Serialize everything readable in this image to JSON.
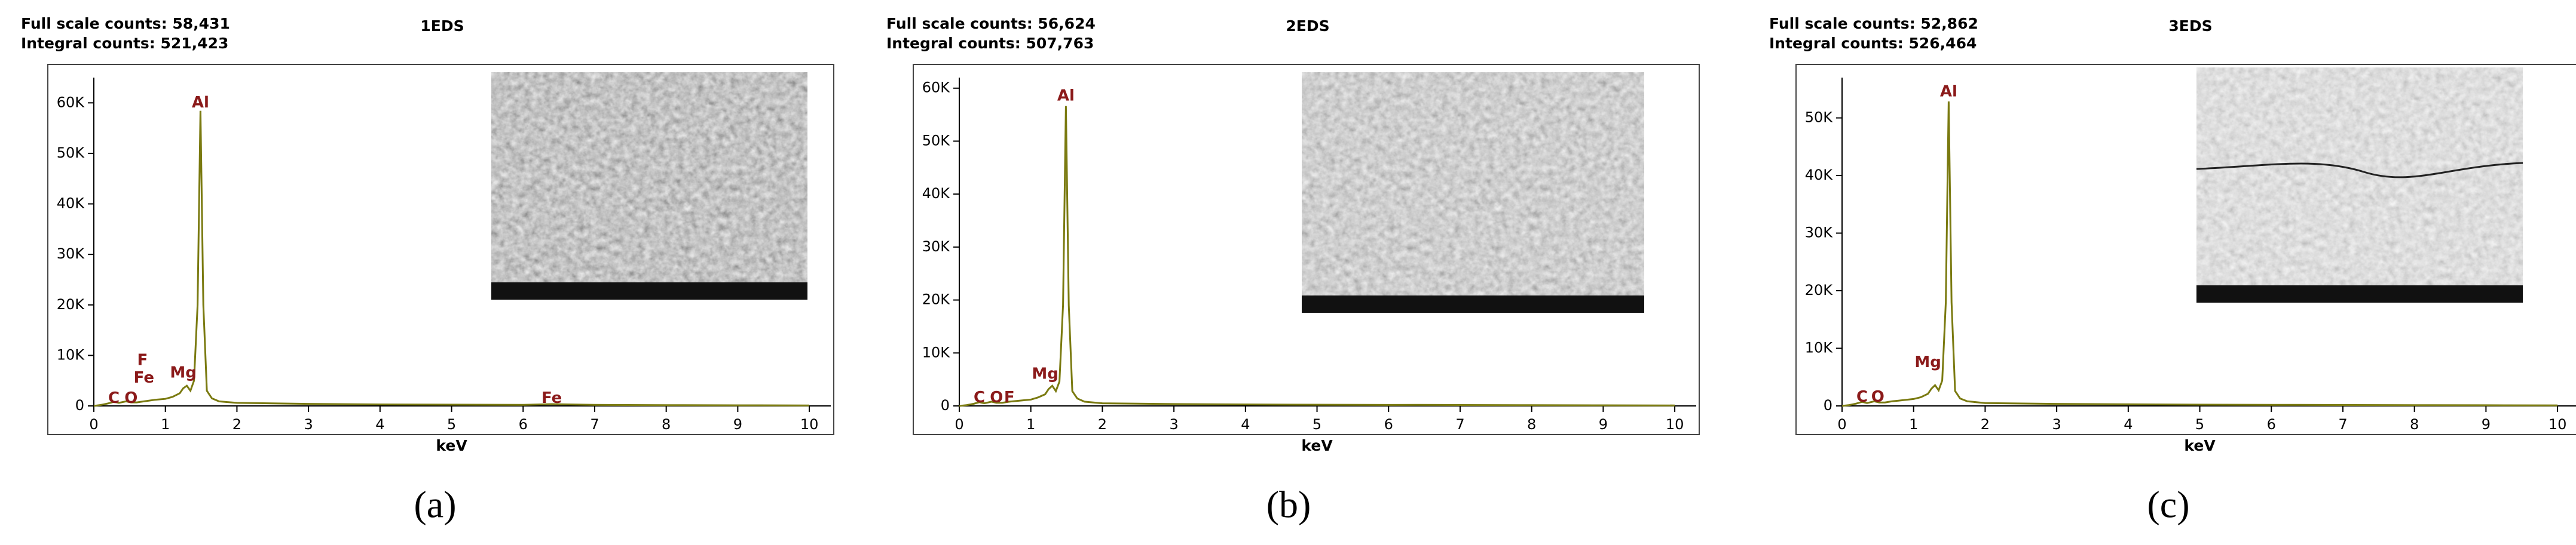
{
  "chart_data": [
    {
      "type": "line",
      "header": [
        "Full scale counts: 58,431",
        "Integral counts: 521,423"
      ],
      "title": "1EDS",
      "xlabel": "keV",
      "caption": "(a)",
      "x": [
        0,
        0.1,
        0.2,
        0.28,
        0.35,
        0.45,
        0.52,
        0.6,
        0.7,
        0.85,
        1.0,
        1.1,
        1.2,
        1.25,
        1.3,
        1.35,
        1.4,
        1.45,
        1.49,
        1.53,
        1.58,
        1.65,
        1.75,
        2.0,
        3,
        4,
        5,
        6,
        6.4,
        7,
        8,
        9,
        10
      ],
      "series": [
        {
          "color": "#7a7a10",
          "values": [
            0,
            200,
            500,
            800,
            600,
            900,
            700,
            700,
            900,
            1200,
            1400,
            1800,
            2500,
            3500,
            4000,
            3000,
            5000,
            20000,
            58431,
            20000,
            3000,
            1500,
            900,
            600,
            400,
            300,
            250,
            200,
            350,
            200,
            150,
            120,
            100
          ]
        }
      ],
      "annotations": [
        {
          "label": "C",
          "x": 0.28,
          "y": 1500
        },
        {
          "label": "O",
          "x": 0.52,
          "y": 1500
        },
        {
          "label": "Fe",
          "x": 0.7,
          "y": 5500
        },
        {
          "label": "F",
          "x": 0.68,
          "y": 9000
        },
        {
          "label": "Mg",
          "x": 1.25,
          "y": 6500
        },
        {
          "label": "Al",
          "x": 1.49,
          "y": 60000
        },
        {
          "label": "Fe",
          "x": 6.4,
          "y": 1500
        }
      ],
      "xlim": [
        0,
        10.3
      ],
      "xticks": [
        0,
        1,
        2,
        3,
        4,
        5,
        6,
        7,
        8,
        9,
        10
      ],
      "ylim": [
        0,
        65000
      ],
      "yticks": [
        0,
        {
          "value": 10000,
          "label": "10K"
        },
        {
          "value": 20000,
          "label": "20K"
        },
        {
          "value": 30000,
          "label": "30K"
        },
        {
          "value": 40000,
          "label": "40K"
        },
        {
          "value": 50000,
          "label": "50K"
        },
        {
          "value": 60000,
          "label": "60K"
        }
      ]
    },
    {
      "type": "line",
      "header": [
        "Full scale counts: 56,624",
        "Integral counts: 507,763"
      ],
      "title": "2EDS",
      "xlabel": "keV",
      "caption": "(b)",
      "x": [
        0,
        0.1,
        0.2,
        0.28,
        0.35,
        0.45,
        0.52,
        0.6,
        0.7,
        0.85,
        1.0,
        1.1,
        1.2,
        1.25,
        1.3,
        1.35,
        1.4,
        1.45,
        1.49,
        1.53,
        1.58,
        1.65,
        1.75,
        2.0,
        3,
        4,
        5,
        6,
        6.4,
        7,
        8,
        9,
        10
      ],
      "series": [
        {
          "color": "#7a7a10",
          "values": [
            0,
            150,
            400,
            700,
            500,
            800,
            600,
            600,
            800,
            1000,
            1200,
            1600,
            2200,
            3200,
            3800,
            2800,
            4600,
            19000,
            56624,
            19000,
            2800,
            1400,
            800,
            500,
            350,
            280,
            220,
            180,
            200,
            170,
            130,
            110,
            90
          ]
        }
      ],
      "annotations": [
        {
          "label": "C",
          "x": 0.28,
          "y": 1500
        },
        {
          "label": "O",
          "x": 0.52,
          "y": 1500
        },
        {
          "label": "F",
          "x": 0.7,
          "y": 1500
        },
        {
          "label": "Mg",
          "x": 1.2,
          "y": 6000
        },
        {
          "label": "Al",
          "x": 1.49,
          "y": 58500
        }
      ],
      "xlim": [
        0,
        10.3
      ],
      "xticks": [
        0,
        1,
        2,
        3,
        4,
        5,
        6,
        7,
        8,
        9,
        10
      ],
      "ylim": [
        0,
        62000
      ],
      "yticks": [
        0,
        {
          "value": 10000,
          "label": "10K"
        },
        {
          "value": 20000,
          "label": "20K"
        },
        {
          "value": 30000,
          "label": "30K"
        },
        {
          "value": 40000,
          "label": "40K"
        },
        {
          "value": 50000,
          "label": "50K"
        },
        {
          "value": 60000,
          "label": "60K"
        }
      ]
    },
    {
      "type": "line",
      "header": [
        "Full scale counts: 52,862",
        "Integral counts: 526,464"
      ],
      "title": "3EDS",
      "xlabel": "keV",
      "caption": "(c)",
      "x": [
        0,
        0.1,
        0.2,
        0.28,
        0.35,
        0.45,
        0.52,
        0.6,
        0.7,
        0.85,
        1.0,
        1.1,
        1.2,
        1.25,
        1.3,
        1.35,
        1.4,
        1.45,
        1.49,
        1.53,
        1.58,
        1.65,
        1.75,
        2.0,
        3,
        4,
        5,
        6,
        6.4,
        7,
        8,
        9,
        10
      ],
      "series": [
        {
          "color": "#7a7a10",
          "values": [
            0,
            150,
            400,
            700,
            500,
            800,
            600,
            600,
            800,
            1000,
            1200,
            1500,
            2100,
            3000,
            3600,
            2700,
            4400,
            18000,
            52862,
            18000,
            2600,
            1300,
            800,
            500,
            350,
            280,
            220,
            180,
            190,
            160,
            130,
            110,
            90
          ]
        }
      ],
      "annotations": [
        {
          "label": "C",
          "x": 0.28,
          "y": 1500
        },
        {
          "label": "O",
          "x": 0.5,
          "y": 1500
        },
        {
          "label": "Mg",
          "x": 1.2,
          "y": 7500
        },
        {
          "label": "Al",
          "x": 1.49,
          "y": 54500
        }
      ],
      "xlim": [
        0,
        10.3
      ],
      "xticks": [
        0,
        1,
        2,
        3,
        4,
        5,
        6,
        7,
        8,
        9,
        10
      ],
      "ylim": [
        0,
        57000
      ],
      "yticks": [
        0,
        {
          "value": 10000,
          "label": "10K"
        },
        {
          "value": 20000,
          "label": "20K"
        },
        {
          "value": 30000,
          "label": "30K"
        },
        {
          "value": 40000,
          "label": "40K"
        },
        {
          "value": 50000,
          "label": "50K"
        }
      ]
    }
  ]
}
